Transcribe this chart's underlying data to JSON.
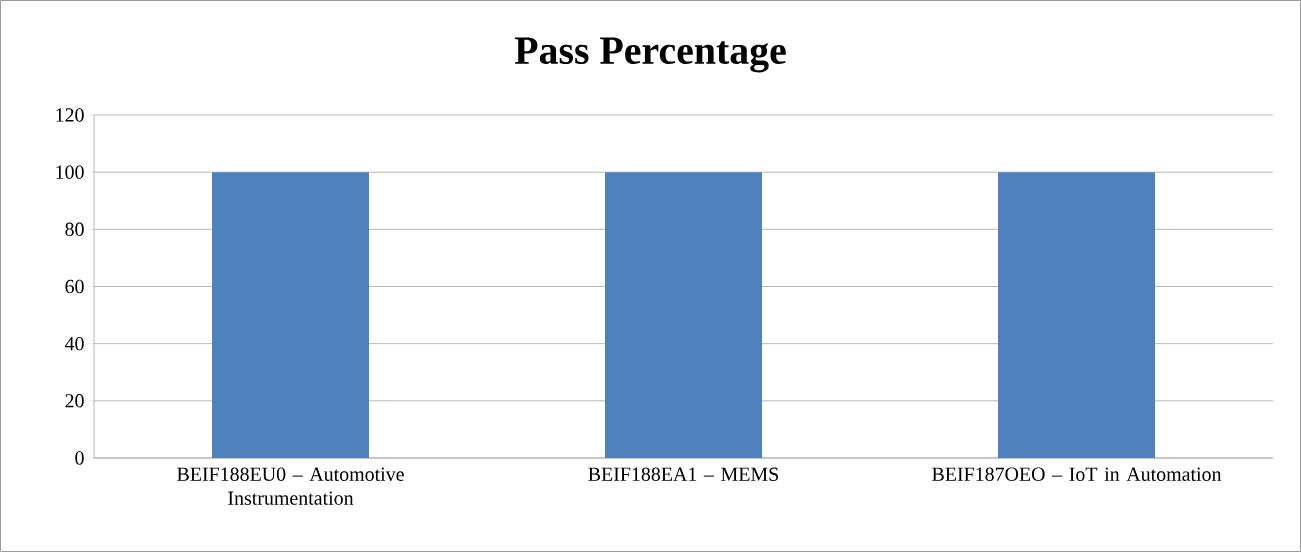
{
  "chart_data": {
    "type": "bar",
    "title": "Pass Percentage",
    "categories": [
      "BEIF188EU0 – Automotive Instrumentation",
      "BEIF188EA1 – MEMS",
      "BEIF187OEO – IoT in Automation"
    ],
    "values": [
      100,
      100,
      100
    ],
    "color": "#4f81bd",
    "ylim": [
      0,
      120
    ],
    "yticks": [
      0,
      20,
      40,
      60,
      80,
      100,
      120
    ],
    "grid": "y"
  }
}
